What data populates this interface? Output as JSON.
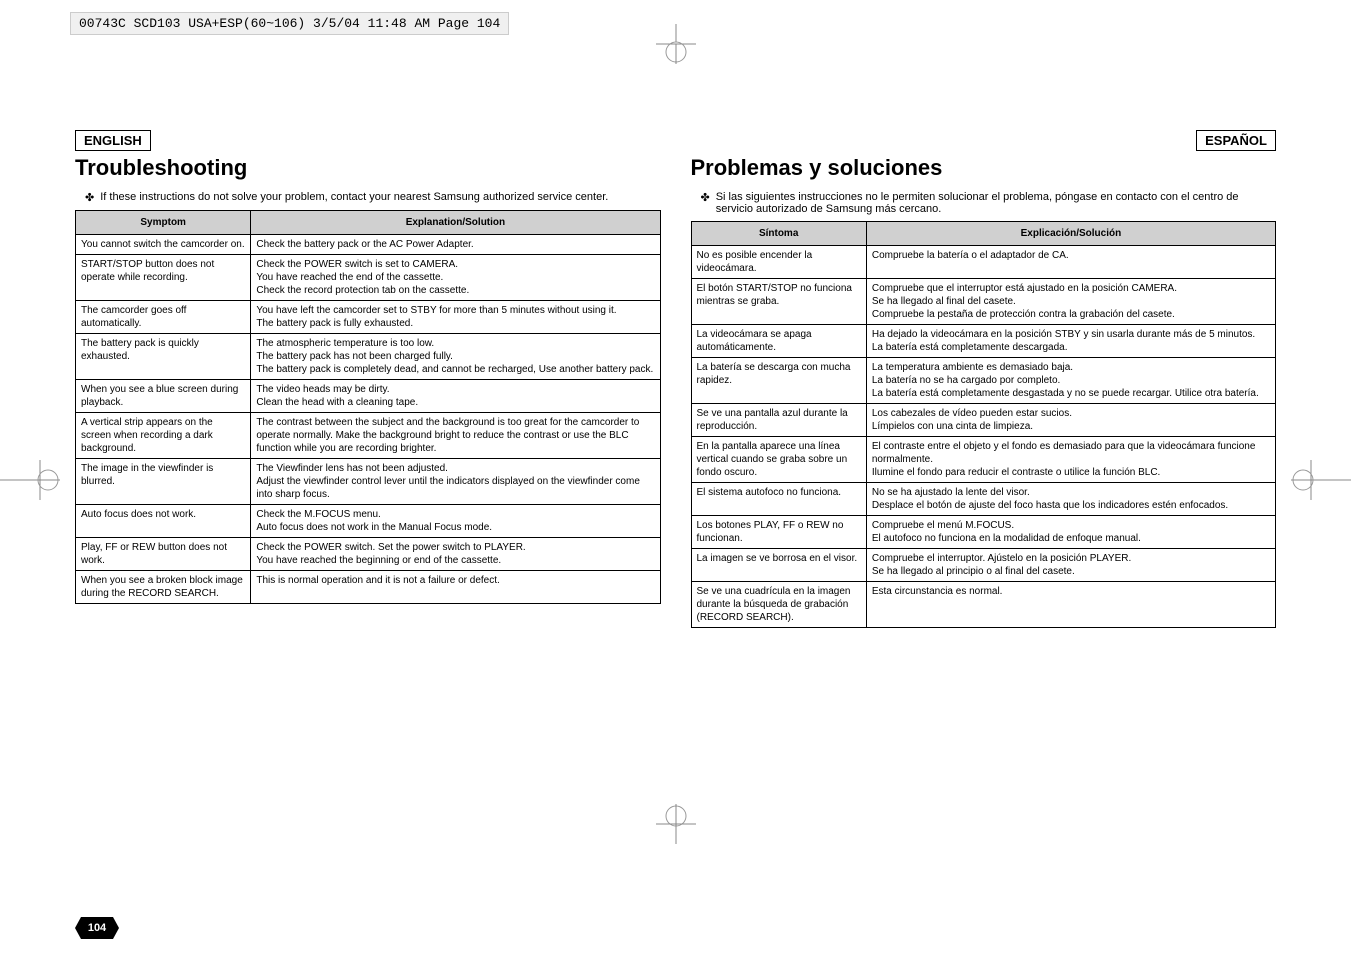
{
  "header": {
    "filepath": "00743C SCD103 USA+ESP(60~106)  3/5/04 11:48 AM  Page 104",
    "page_tab": "Page 104"
  },
  "crop_marks": {
    "stroke": "#888888",
    "circle_stroke": "#999999"
  },
  "page_badge": {
    "number": "104",
    "bg_color": "#000000",
    "text_color": "#ffffff"
  },
  "left": {
    "lang": "ENGLISH",
    "title": "Troubleshooting",
    "intro_bullet": "✤",
    "intro": "If these instructions do not solve your problem, contact your nearest Samsung authorized service center.",
    "col1_header": "Symptom",
    "col2_header": "Explanation/Solution",
    "rows": [
      {
        "s": "You cannot switch the camcorder on.",
        "e": "Check the battery pack or the AC Power Adapter."
      },
      {
        "s": "START/STOP button does not operate while recording.",
        "e": "Check the POWER switch is set to CAMERA.\nYou have reached the end of the cassette.\nCheck the record protection tab on the cassette."
      },
      {
        "s": "The camcorder goes off automatically.",
        "e": "You have left the camcorder set to STBY for more than 5 minutes without using it.\nThe battery pack is fully exhausted."
      },
      {
        "s": "The battery pack is quickly exhausted.",
        "e": "The atmospheric temperature is too low.\nThe battery pack has not been charged fully.\nThe battery pack is completely dead, and cannot be recharged, Use another battery pack."
      },
      {
        "s": "When you see a blue screen during playback.",
        "e": "The video heads may be dirty.\nClean the head with a cleaning tape."
      },
      {
        "s": "A vertical strip appears on the screen when recording a dark background.",
        "e": "The contrast between the subject and the background is too great for the camcorder to operate normally. Make the background bright to reduce the contrast or use the BLC function while you are recording brighter."
      },
      {
        "s": "The image in the viewfinder is blurred.",
        "e": "The Viewfinder lens has not been adjusted.\nAdjust the viewfinder control lever until the indicators displayed on the viewfinder come into sharp focus."
      },
      {
        "s": "Auto focus does not work.",
        "e": "Check the M.FOCUS menu.\nAuto focus does not work in the Manual Focus mode."
      },
      {
        "s": "Play, FF or REW button does not work.",
        "e": "Check the POWER switch. Set the power switch to PLAYER.\nYou have reached the beginning or end of the cassette."
      },
      {
        "s": "When you see a broken block image during the RECORD SEARCH.",
        "e": "This is normal operation and it is not a failure or defect."
      }
    ]
  },
  "right": {
    "lang": "ESPAÑOL",
    "title": "Problemas y soluciones",
    "intro_bullet": "✤",
    "intro": "Si las siguientes instrucciones no le permiten solucionar el problema, póngase en contacto con el centro de servicio autorizado de Samsung más cercano.",
    "col1_header": "Síntoma",
    "col2_header": "Explicación/Solución",
    "rows": [
      {
        "s": "No es posible encender la videocámara.",
        "e": "Compruebe la batería o el adaptador de CA."
      },
      {
        "s": "El botón START/STOP no funciona mientras se graba.",
        "e": "Compruebe que el interruptor está ajustado en la posición CAMERA.\nSe ha llegado al final del casete.\nCompruebe la pestaña de protección contra la grabación del casete."
      },
      {
        "s": "La videocámara se apaga automáticamente.",
        "e": "Ha dejado la videocámara en la posición STBY y sin usarla durante más de 5 minutos.\nLa batería está completamente descargada."
      },
      {
        "s": "La batería se descarga con mucha rapidez.",
        "e": "La temperatura ambiente es demasiado baja.\nLa batería no se ha cargado por completo.\nLa batería está completamente desgastada y no se puede recargar. Utilice otra batería."
      },
      {
        "s": "Se ve una pantalla azul durante la reproducción.",
        "e": "Los cabezales de vídeo pueden estar sucios.\nLímpielos con una cinta de limpieza."
      },
      {
        "s": "En la pantalla aparece una línea vertical cuando se graba sobre un fondo oscuro.",
        "e": "El contraste entre el objeto y el fondo es demasiado para que la videocámara funcione normalmente.\nIlumine el fondo para reducir el contraste o utilice la función BLC."
      },
      {
        "s": "El sistema autofoco no funciona.",
        "e": "No se ha ajustado la lente del visor.\nDesplace el botón de ajuste del foco hasta que los indicadores estén enfocados."
      },
      {
        "s": "Los botones PLAY, FF o REW no funcionan.",
        "e": "Compruebe el menú M.FOCUS.\nEl autofoco no funciona en la modalidad de enfoque manual."
      },
      {
        "s": "La imagen se ve borrosa en el visor.",
        "e": "Compruebe el interruptor. Ajústelo en la posición PLAYER.\nSe ha llegado al principio o al final del casete."
      },
      {
        "s": "Se ve una cuadrícula en la imagen durante la búsqueda de grabación (RECORD SEARCH).",
        "e": "Esta circunstancia es normal."
      }
    ]
  }
}
